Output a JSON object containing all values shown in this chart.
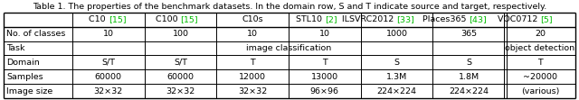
{
  "caption": "Table 1. The properties of the benchmark datasets. In the domain row, S and T indicate source and target, respectively.",
  "col_headers": [
    {
      "text": "C10 ",
      "ref": "[15]",
      "ref_color": "#00bb00"
    },
    {
      "text": "C100 ",
      "ref": "[15]",
      "ref_color": "#00bb00"
    },
    {
      "text": "C10s",
      "ref": "",
      "ref_color": "#00bb00"
    },
    {
      "text": "STL10 ",
      "ref": "[2]",
      "ref_color": "#00bb00"
    },
    {
      "text": "ILSVRC2012 ",
      "ref": "[33]",
      "ref_color": "#00bb00"
    },
    {
      "text": "Places365 ",
      "ref": "[43]",
      "ref_color": "#00bb00"
    },
    {
      "text": "VOC0712 ",
      "ref": "[5]",
      "ref_color": "#00bb00"
    }
  ],
  "row_headers": [
    "No. of classes",
    "Task",
    "Domain",
    "Samples",
    "Image size"
  ],
  "data": [
    [
      "10",
      "100",
      "10",
      "10",
      "1000",
      "365",
      "20"
    ],
    [
      "image classification",
      "image classification",
      "image classification",
      "image classification",
      "image classification",
      "image classification",
      "object detection"
    ],
    [
      "S/T",
      "S/T",
      "T",
      "T",
      "S",
      "S",
      "T"
    ],
    [
      "60000",
      "60000",
      "12000",
      "13000",
      "1.3M",
      "1.8M",
      "~20000"
    ],
    [
      "32×32",
      "32×32",
      "32×32",
      "96×96",
      "224×224",
      "224×224",
      "(various)"
    ]
  ],
  "bg_color": "#ffffff",
  "text_color": "#000000",
  "font_size": 6.8,
  "fig_width": 6.4,
  "fig_height": 1.11,
  "dpi": 100
}
